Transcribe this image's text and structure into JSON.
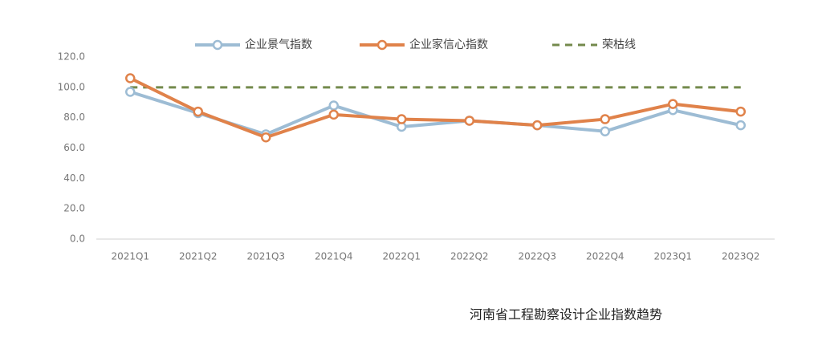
{
  "chart_data": {
    "type": "line",
    "title": "河南省工程勘察设计企业指数趋势",
    "categories": [
      "2021Q1",
      "2021Q2",
      "2021Q3",
      "2021Q4",
      "2022Q1",
      "2022Q2",
      "2022Q3",
      "2022Q4",
      "2023Q1",
      "2023Q2"
    ],
    "series": [
      {
        "name": "企业景气指数",
        "color": "#9dbcd4",
        "style": "solid-marker",
        "values": [
          97,
          83,
          69,
          88,
          74,
          78,
          75,
          71,
          85,
          75
        ]
      },
      {
        "name": "企业家信心指数",
        "color": "#e0824a",
        "style": "solid-marker",
        "values": [
          106,
          84,
          67,
          82,
          79,
          78,
          75,
          79,
          89,
          84
        ]
      },
      {
        "name": "荣枯线",
        "color": "#748a4c",
        "style": "dashed",
        "values": [
          100,
          100,
          100,
          100,
          100,
          100,
          100,
          100,
          100,
          100
        ]
      }
    ],
    "ylim": [
      0,
      120
    ],
    "yticks": [
      {
        "value": 0,
        "label": "0.0"
      },
      {
        "value": 20,
        "label": "20.0"
      },
      {
        "value": 40,
        "label": "40.0"
      },
      {
        "value": 60,
        "label": "60.0"
      },
      {
        "value": 80,
        "label": "80.0"
      },
      {
        "value": 100,
        "label": "100.0"
      },
      {
        "value": 120,
        "label": "120.0"
      }
    ],
    "grid": false,
    "legend": "top"
  }
}
